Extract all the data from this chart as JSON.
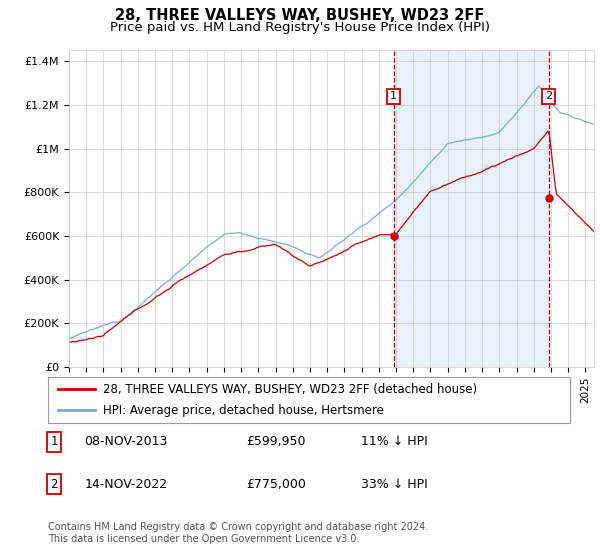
{
  "title": "28, THREE VALLEYS WAY, BUSHEY, WD23 2FF",
  "subtitle": "Price paid vs. HM Land Registry's House Price Index (HPI)",
  "ylim": [
    0,
    1450000
  ],
  "yticks": [
    0,
    200000,
    400000,
    600000,
    800000,
    1000000,
    1200000,
    1400000
  ],
  "ytick_labels": [
    "£0",
    "£200K",
    "£400K",
    "£600K",
    "£800K",
    "£1M",
    "£1.2M",
    "£1.4M"
  ],
  "year_start": 1995,
  "year_end": 2025,
  "sale1_date": 2013.86,
  "sale1_price": 599950,
  "sale2_date": 2022.87,
  "sale2_price": 775000,
  "hpi_color": "#7aadd4",
  "property_color": "#cc0000",
  "shading_color": "#ddeeff",
  "grid_color": "#cccccc",
  "background_color": "#ffffff",
  "legend_label_property": "28, THREE VALLEYS WAY, BUSHEY, WD23 2FF (detached house)",
  "legend_label_hpi": "HPI: Average price, detached house, Hertsmere",
  "footer": "Contains HM Land Registry data © Crown copyright and database right 2024.\nThis data is licensed under the Open Government Licence v3.0.",
  "title_fontsize": 10.5,
  "subtitle_fontsize": 9.5,
  "tick_fontsize": 8,
  "legend_fontsize": 8.5,
  "footer_fontsize": 7
}
